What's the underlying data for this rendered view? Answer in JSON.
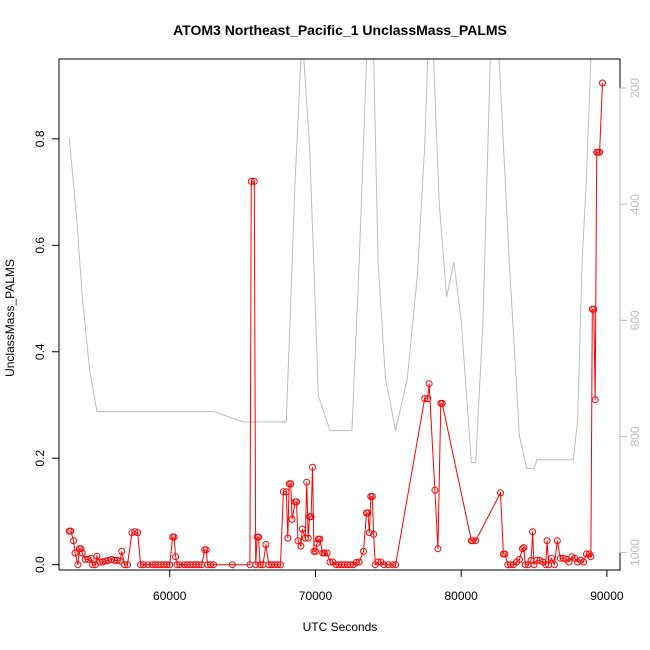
{
  "chart_data": {
    "type": "line",
    "title": "ATOM3 Northeast_Pacific_1 UnclassMass_PALMS",
    "xlabel": "UTC Seconds",
    "ylabel": "UnclassMass_PALMS",
    "xlim": [
      52400,
      90900
    ],
    "ylim": [
      -0.01,
      0.95
    ],
    "xticks": [
      60000,
      70000,
      80000,
      90000
    ],
    "yticks": [
      0.0,
      0.2,
      0.4,
      0.6,
      0.8
    ],
    "ytick_labels": [
      "0.0",
      "0.2",
      "0.4",
      "0.6",
      "0.8"
    ],
    "y2lim": [
      1030,
      150
    ],
    "y2ticks": [
      200,
      400,
      600,
      800,
      1000
    ],
    "grid": false,
    "colors": {
      "series": "#ff0000",
      "secondary": "#bebebe",
      "axis": "#000000"
    },
    "series": [
      {
        "values_xy": [
          [
            53100,
            0.063
          ],
          [
            53200,
            0.063
          ],
          [
            53400,
            0.045
          ],
          [
            53500,
            0.022
          ],
          [
            53700,
            0.0
          ],
          [
            53800,
            0.03
          ],
          [
            53900,
            0.03
          ],
          [
            54000,
            0.022
          ],
          [
            54200,
            0.01
          ],
          [
            54400,
            0.01
          ],
          [
            54600,
            0.012
          ],
          [
            54700,
            0.0
          ],
          [
            54900,
            0.0
          ],
          [
            55000,
            0.016
          ],
          [
            55200,
            0.005
          ],
          [
            55400,
            0.005
          ],
          [
            55600,
            0.007
          ],
          [
            55800,
            0.008
          ],
          [
            56000,
            0.01
          ],
          [
            56200,
            0.008
          ],
          [
            56400,
            0.008
          ],
          [
            56600,
            0.007
          ],
          [
            56700,
            0.025
          ],
          [
            56900,
            0.0
          ],
          [
            57100,
            0.0
          ],
          [
            57400,
            0.06
          ],
          [
            57600,
            0.062
          ],
          [
            57800,
            0.06
          ],
          [
            58000,
            0.0
          ],
          [
            58200,
            0.0
          ],
          [
            58500,
            0.0
          ],
          [
            58800,
            0.0
          ],
          [
            59000,
            0.0
          ],
          [
            59200,
            0.0
          ],
          [
            59400,
            0.0
          ],
          [
            59600,
            0.0
          ],
          [
            59800,
            0.0
          ],
          [
            60000,
            0.0
          ],
          [
            60200,
            0.052
          ],
          [
            60300,
            0.052
          ],
          [
            60400,
            0.015
          ],
          [
            60500,
            0.0
          ],
          [
            60700,
            0.0
          ],
          [
            61000,
            0.0
          ],
          [
            61200,
            0.0
          ],
          [
            61400,
            0.0
          ],
          [
            61600,
            0.0
          ],
          [
            61800,
            0.0
          ],
          [
            62000,
            0.0
          ],
          [
            62200,
            0.0
          ],
          [
            62400,
            0.028
          ],
          [
            62500,
            0.028
          ],
          [
            62600,
            0.0
          ],
          [
            62800,
            0.0
          ],
          [
            63000,
            0.0
          ],
          [
            64300,
            0.0
          ],
          [
            65500,
            0.0
          ],
          [
            65600,
            0.72
          ],
          [
            65800,
            0.72
          ],
          [
            65900,
            0.0
          ],
          [
            66000,
            0.052
          ],
          [
            66100,
            0.052
          ],
          [
            66200,
            0.0
          ],
          [
            66400,
            0.0
          ],
          [
            66600,
            0.038
          ],
          [
            66800,
            0.0
          ],
          [
            67000,
            0.0
          ],
          [
            67200,
            0.0
          ],
          [
            67400,
            0.0
          ],
          [
            67600,
            0.0
          ],
          [
            67800,
            0.137
          ],
          [
            68000,
            0.137
          ],
          [
            68100,
            0.05
          ],
          [
            68200,
            0.152
          ],
          [
            68300,
            0.152
          ],
          [
            68400,
            0.085
          ],
          [
            68600,
            0.118
          ],
          [
            68700,
            0.118
          ],
          [
            68800,
            0.045
          ],
          [
            69000,
            0.035
          ],
          [
            69100,
            0.067
          ],
          [
            69300,
            0.05
          ],
          [
            69400,
            0.155
          ],
          [
            69500,
            0.05
          ],
          [
            69600,
            0.09
          ],
          [
            69700,
            0.09
          ],
          [
            69800,
            0.183
          ],
          [
            69900,
            0.025
          ],
          [
            70000,
            0.025
          ],
          [
            70100,
            0.04
          ],
          [
            70200,
            0.048
          ],
          [
            70300,
            0.048
          ],
          [
            70500,
            0.022
          ],
          [
            70600,
            0.022
          ],
          [
            70800,
            0.022
          ],
          [
            71000,
            0.005
          ],
          [
            71200,
            0.005
          ],
          [
            71400,
            0.0
          ],
          [
            71600,
            0.0
          ],
          [
            71800,
            0.0
          ],
          [
            72000,
            0.0
          ],
          [
            72200,
            0.0
          ],
          [
            72400,
            0.0
          ],
          [
            72600,
            0.0
          ],
          [
            72800,
            0.004
          ],
          [
            73000,
            0.005
          ],
          [
            73300,
            0.025
          ],
          [
            73500,
            0.097
          ],
          [
            73600,
            0.097
          ],
          [
            73700,
            0.06
          ],
          [
            73800,
            0.128
          ],
          [
            73900,
            0.128
          ],
          [
            74000,
            0.057
          ],
          [
            74100,
            0.0
          ],
          [
            74300,
            0.005
          ],
          [
            74500,
            0.005
          ],
          [
            74700,
            0.0
          ],
          [
            75000,
            0.0
          ],
          [
            75300,
            0.0
          ],
          [
            75500,
            0.0
          ],
          [
            77500,
            0.312
          ],
          [
            77700,
            0.312
          ],
          [
            77800,
            0.34
          ],
          [
            78200,
            0.14
          ],
          [
            78400,
            0.03
          ],
          [
            78600,
            0.303
          ],
          [
            78700,
            0.303
          ],
          [
            80700,
            0.045
          ],
          [
            80800,
            0.045
          ],
          [
            81000,
            0.045
          ],
          [
            82700,
            0.135
          ],
          [
            82900,
            0.02
          ],
          [
            83000,
            0.02
          ],
          [
            83200,
            0.0
          ],
          [
            83400,
            0.0
          ],
          [
            83600,
            0.0
          ],
          [
            83800,
            0.005
          ],
          [
            84000,
            0.01
          ],
          [
            84200,
            0.03
          ],
          [
            84300,
            0.032
          ],
          [
            84400,
            0.0
          ],
          [
            84600,
            0.0
          ],
          [
            84800,
            0.008
          ],
          [
            84900,
            0.062
          ],
          [
            85000,
            0.0
          ],
          [
            85200,
            0.008
          ],
          [
            85400,
            0.008
          ],
          [
            85600,
            0.005
          ],
          [
            85800,
            0.0
          ],
          [
            85900,
            0.045
          ],
          [
            86000,
            0.0
          ],
          [
            86200,
            0.012
          ],
          [
            86400,
            0.0
          ],
          [
            86600,
            0.045
          ],
          [
            86800,
            0.012
          ],
          [
            87000,
            0.012
          ],
          [
            87200,
            0.01
          ],
          [
            87400,
            0.005
          ],
          [
            87600,
            0.015
          ],
          [
            87800,
            0.012
          ],
          [
            88000,
            0.005
          ],
          [
            88200,
            0.008
          ],
          [
            88400,
            0.005
          ],
          [
            88600,
            0.02
          ],
          [
            88800,
            0.02
          ],
          [
            88900,
            0.015
          ],
          [
            89000,
            0.48
          ],
          [
            89100,
            0.48
          ],
          [
            89200,
            0.31
          ],
          [
            89300,
            0.775
          ],
          [
            89400,
            0.775
          ],
          [
            89500,
            0.775
          ],
          [
            89700,
            0.905
          ]
        ]
      },
      {
        "axis": "y2",
        "values_xy": [
          [
            53100,
            285
          ],
          [
            53600,
            420
          ],
          [
            54000,
            560
          ],
          [
            54500,
            685
          ],
          [
            55000,
            757
          ],
          [
            60000,
            757
          ],
          [
            63000,
            757
          ],
          [
            65000,
            775
          ],
          [
            67000,
            775
          ],
          [
            68000,
            775
          ],
          [
            68600,
            360
          ],
          [
            69000,
            145
          ],
          [
            69200,
            145
          ],
          [
            69600,
            300
          ],
          [
            70200,
            730
          ],
          [
            71000,
            790
          ],
          [
            72000,
            790
          ],
          [
            72500,
            790
          ],
          [
            73000,
            500
          ],
          [
            73500,
            145
          ],
          [
            74000,
            145
          ],
          [
            74300,
            500
          ],
          [
            74800,
            700
          ],
          [
            75500,
            790
          ],
          [
            76300,
            700
          ],
          [
            77000,
            520
          ],
          [
            77500,
            300
          ],
          [
            77700,
            145
          ],
          [
            78100,
            145
          ],
          [
            78500,
            400
          ],
          [
            79000,
            560
          ],
          [
            79500,
            500
          ],
          [
            80000,
            600
          ],
          [
            80700,
            845
          ],
          [
            81000,
            845
          ],
          [
            81500,
            600
          ],
          [
            82000,
            145
          ],
          [
            82600,
            145
          ],
          [
            83300,
            500
          ],
          [
            84000,
            800
          ],
          [
            84500,
            855
          ],
          [
            85000,
            855
          ],
          [
            85200,
            840
          ],
          [
            87700,
            840
          ],
          [
            88000,
            770
          ],
          [
            88300,
            500
          ],
          [
            88600,
            350
          ],
          [
            88900,
            150
          ]
        ]
      }
    ]
  }
}
